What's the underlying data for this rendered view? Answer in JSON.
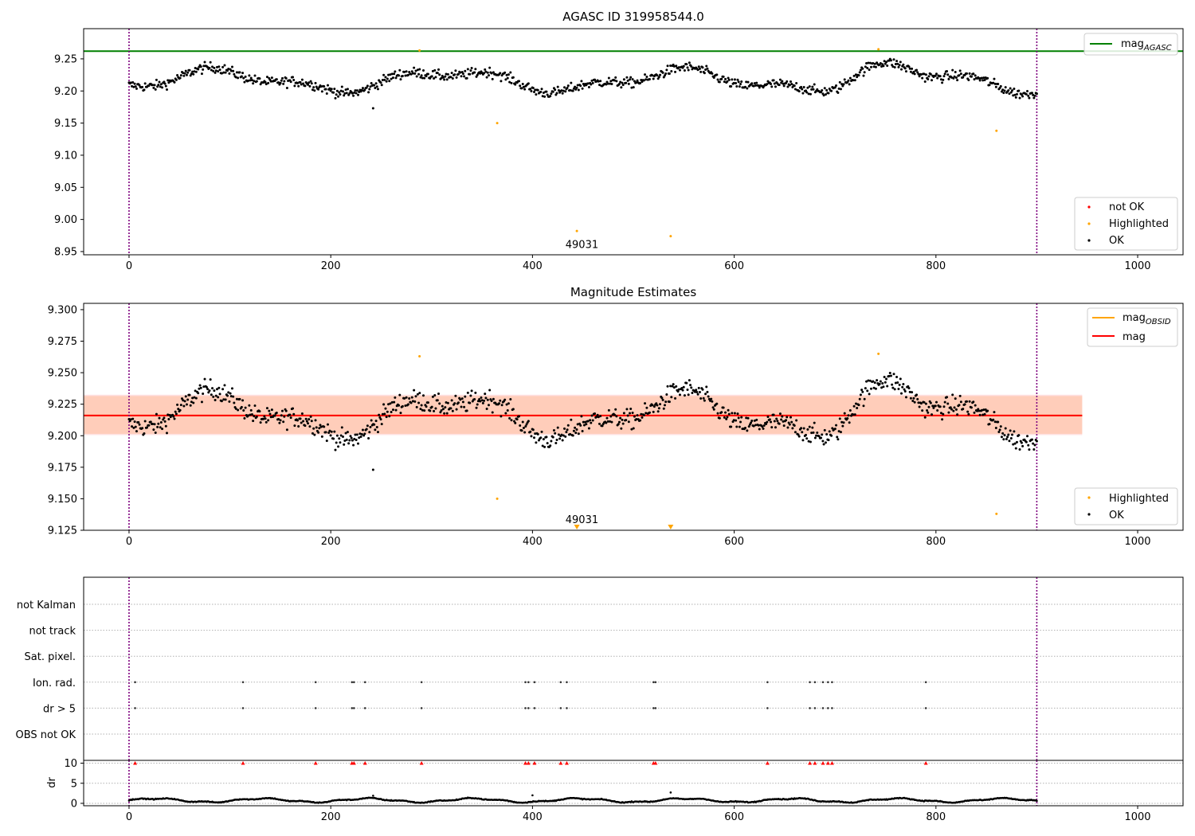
{
  "chart_data": [
    {
      "type": "scatter",
      "title": "AGASC ID 319958544.0",
      "xlabel": "",
      "ylabel": "",
      "xlim": [
        -45,
        1045
      ],
      "ylim": [
        8.945,
        9.297
      ],
      "xticks": [
        "0",
        "200",
        "400",
        "600",
        "800",
        "1000"
      ],
      "yticks": [
        "8.95",
        "9.00",
        "9.05",
        "9.10",
        "9.15",
        "9.20",
        "9.25"
      ],
      "ytick_values": [
        8.95,
        9.0,
        9.05,
        9.1,
        9.15,
        9.2,
        9.25
      ],
      "vlines": [
        0,
        900
      ],
      "mag_agasc": 9.262,
      "legend_lines": {
        "label": "mag",
        "sub": "AGASC",
        "color": "#008000",
        "placement": "upper right"
      },
      "legend_points": [
        {
          "label": "not OK",
          "color": "#ff0000"
        },
        {
          "label": "Highlighted",
          "color": "#ffa500"
        },
        {
          "label": "OK",
          "color": "#000000"
        }
      ],
      "legend_points_placement": "lower right",
      "annotation": {
        "text": "49031",
        "x": 449,
        "y": 8.962
      },
      "series": [
        {
          "name": "OK",
          "color": "#000000",
          "pattern": "lightcurve",
          "x_range": [
            0,
            900
          ],
          "n": 960,
          "outliers": [
            [
              242,
              9.173
            ]
          ]
        },
        {
          "name": "Highlighted",
          "color": "#ffa500",
          "points": [
            [
              288,
              9.263
            ],
            [
              365,
              9.15
            ],
            [
              444,
              8.982
            ],
            [
              537,
              8.974
            ],
            [
              743,
              9.265
            ],
            [
              860,
              9.138
            ]
          ]
        }
      ]
    },
    {
      "type": "scatter",
      "title": "Magnitude Estimates",
      "xlabel": "",
      "ylabel": "",
      "xlim": [
        -45,
        1045
      ],
      "ylim": [
        9.125,
        9.305
      ],
      "xticks": [
        "0",
        "200",
        "400",
        "600",
        "800",
        "1000"
      ],
      "yticks": [
        "9.125",
        "9.150",
        "9.175",
        "9.200",
        "9.225",
        "9.250",
        "9.275",
        "9.300"
      ],
      "ytick_values": [
        9.125,
        9.15,
        9.175,
        9.2,
        9.225,
        9.25,
        9.275,
        9.3
      ],
      "vlines": [
        0,
        900
      ],
      "mag": 9.216,
      "mag_band": [
        9.2015,
        9.2315
      ],
      "mag_obsid": 9.216,
      "mag_obsid_band": [
        9.2005,
        9.2325
      ],
      "band_x": [
        -45,
        945
      ],
      "legend_lines": [
        {
          "label": "mag",
          "sub": "OBSID",
          "color": "#ffa500"
        },
        {
          "label": "mag",
          "sub": "",
          "color": "#ff0000"
        }
      ],
      "legend_lines_placement": "upper right",
      "legend_points": [
        {
          "label": "Highlighted",
          "color": "#ffa500"
        },
        {
          "label": "OK",
          "color": "#000000"
        }
      ],
      "legend_points_placement": "lower right",
      "annotation": {
        "text": "49031",
        "x": 449,
        "y": 9.132
      },
      "series": [
        {
          "name": "OK",
          "color": "#000000",
          "pattern": "lightcurve",
          "x_range": [
            0,
            900
          ],
          "n": 960,
          "outliers": [
            [
              242,
              9.173
            ]
          ]
        },
        {
          "name": "Highlighted",
          "color": "#ffa500",
          "points": [
            [
              288,
              9.263
            ],
            [
              365,
              9.15
            ],
            [
              860,
              9.138
            ],
            [
              743,
              9.265
            ]
          ]
        },
        {
          "name": "Highlighted (clipped)",
          "color": "#ffa500",
          "marker": "triangle-down",
          "points": [
            [
              444,
              9.127
            ],
            [
              537,
              9.127
            ]
          ]
        }
      ]
    },
    {
      "type": "scatter",
      "title": "",
      "xlabel": "",
      "ylabel": "",
      "xlim": [
        -45,
        1045
      ],
      "xticks": [
        "0",
        "200",
        "400",
        "600",
        "800",
        "1000"
      ],
      "vlines": [
        0,
        900
      ],
      "flag_rows": [
        "not Kalman",
        "not track",
        "Sat. pixel.",
        "Ion. rad.",
        "dr > 5",
        "OBS not OK"
      ],
      "flag_points": {
        "Ion. rad.": [
          6,
          113,
          185,
          221,
          223,
          234,
          290,
          393,
          396,
          402,
          428,
          434,
          520,
          522,
          633,
          675,
          680,
          688,
          693,
          697,
          790
        ],
        "dr > 5": [
          6,
          113,
          185,
          221,
          223,
          234,
          290,
          393,
          396,
          402,
          428,
          434,
          520,
          522,
          633,
          675,
          680,
          688,
          693,
          697,
          790
        ]
      }
    },
    {
      "type": "scatter",
      "title": "",
      "xlabel": "",
      "ylabel": "dr",
      "xlim": [
        -45,
        1045
      ],
      "ylim": [
        -0.6,
        10.7
      ],
      "xticks": [
        "0",
        "200",
        "400",
        "600",
        "800",
        "1000"
      ],
      "yticks": [
        "0",
        "5",
        "10"
      ],
      "ytick_values": [
        0,
        5,
        10
      ],
      "vlines": [
        0,
        900
      ],
      "series": [
        {
          "name": "OK",
          "color": "#000000",
          "pattern": "dr",
          "x_range": [
            0,
            900
          ],
          "n": 960,
          "outliers": [
            [
              242,
              1.9
            ],
            [
              537,
              2.7
            ],
            [
              400,
              2.0
            ]
          ]
        },
        {
          "name": "clipped",
          "color": "#ff0000",
          "marker": "triangle-up",
          "y": 10,
          "x": [
            6,
            113,
            185,
            221,
            223,
            234,
            290,
            393,
            396,
            402,
            428,
            434,
            520,
            522,
            633,
            675,
            680,
            688,
            693,
            697,
            790
          ]
        }
      ]
    }
  ]
}
